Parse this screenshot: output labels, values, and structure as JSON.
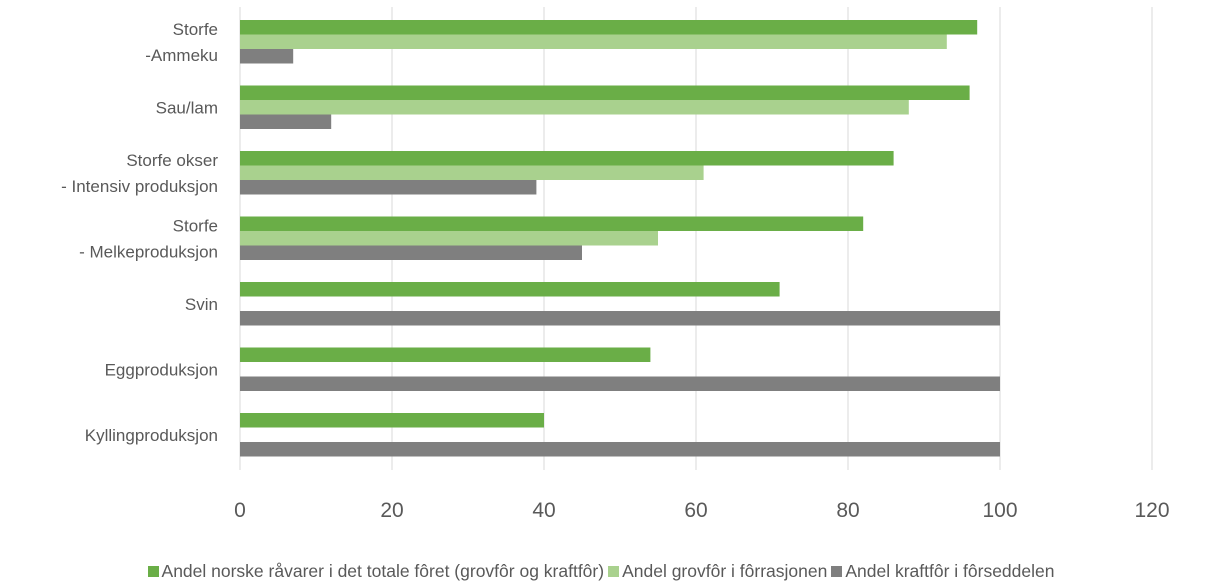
{
  "chart_data": {
    "type": "bar",
    "orientation": "horizontal",
    "categories": [
      [
        "Storfe",
        "-Ammeku"
      ],
      [
        "Sau/lam"
      ],
      [
        "Storfe okser",
        "- Intensiv produksjon"
      ],
      [
        "Storfe",
        "- Melkeproduksjon"
      ],
      [
        "Svin"
      ],
      [
        "Eggproduksjon"
      ],
      [
        "Kyllingproduksjon"
      ]
    ],
    "series": [
      {
        "name": "Andel norske råvarer i det totale fôret (grovfôr og kraftfôr)",
        "color": "#6aae47",
        "values": [
          97,
          96,
          86,
          82,
          71,
          54,
          40
        ]
      },
      {
        "name": "Andel grovfôr i fôrrasjonen",
        "color": "#a9d18e",
        "values": [
          93,
          88,
          61,
          55,
          null,
          null,
          null
        ]
      },
      {
        "name": "Andel kraftfôr i fôrseddelen",
        "color": "#7f7f7f",
        "values": [
          7,
          12,
          39,
          45,
          100,
          100,
          100
        ]
      }
    ],
    "xlim": [
      0,
      120
    ],
    "xticks": [
      0,
      20,
      40,
      60,
      80,
      100,
      120
    ],
    "grid": true,
    "legend_position": "bottom",
    "title": "",
    "xlabel": "",
    "ylabel": ""
  }
}
